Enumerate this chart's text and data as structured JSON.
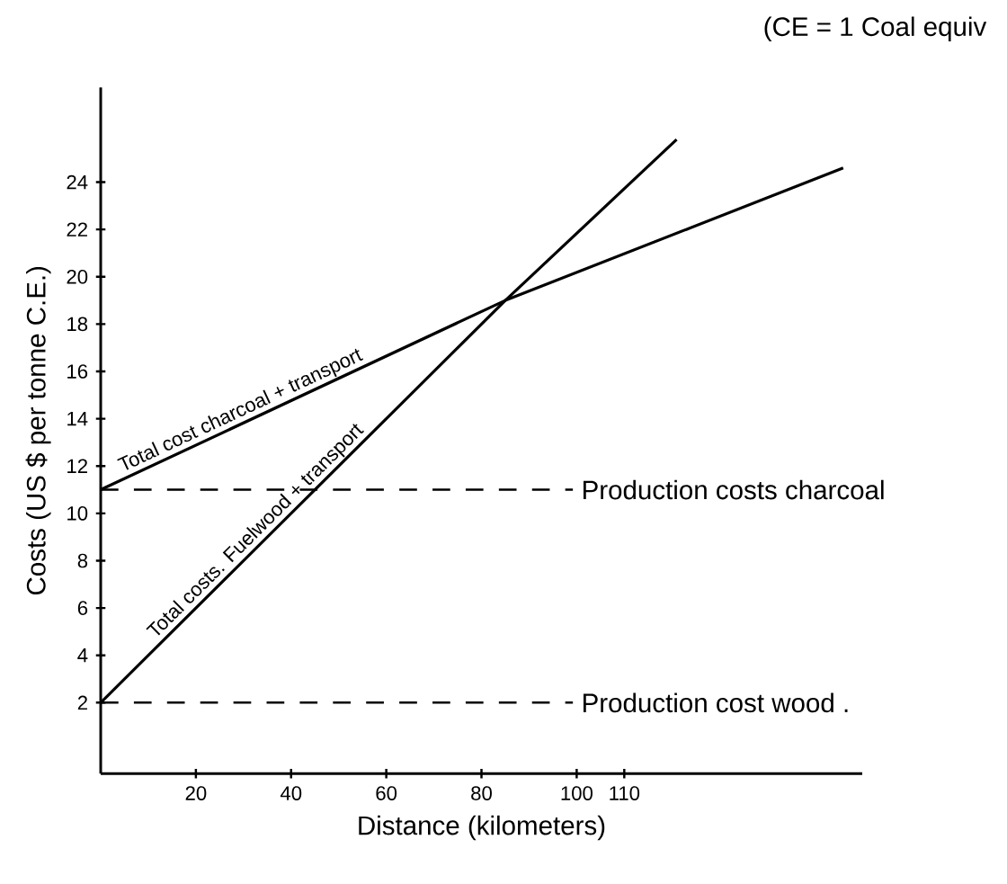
{
  "chart_data": {
    "type": "line",
    "xlabel": "Distance (kilometers)",
    "ylabel": "Costs (US $ per tonne C.E.)",
    "annotations": [
      "(CE = 1 Coal equiv"
    ],
    "series": [
      {
        "name": "Total cost charcoal + transport",
        "color": "#000000",
        "x": [
          0,
          85,
          156
        ],
        "values": [
          11,
          19,
          24.6
        ]
      },
      {
        "name": "Total costs. Fuelwood + transport",
        "color": "#000000",
        "x": [
          0,
          85,
          121
        ],
        "values": [
          2,
          19,
          25.8
        ]
      }
    ],
    "ref_lines": [
      {
        "axis": "y",
        "value": 11,
        "label": "Production costs charcoal",
        "color": "#000000",
        "line_style": "dashed"
      },
      {
        "axis": "y",
        "value": 2,
        "label": "Production cost wood .",
        "color": "#000000",
        "line_style": "dashed"
      }
    ],
    "xlim": [
      0,
      160
    ],
    "ylim": [
      -1,
      28
    ],
    "xticks": [
      20,
      40,
      60,
      80,
      100,
      110
    ],
    "yticks": [
      2,
      4,
      6,
      8,
      10,
      12,
      14,
      16,
      18,
      20,
      22,
      24
    ],
    "grid": false,
    "legend": false,
    "marker": "none",
    "line_style": "solid"
  }
}
